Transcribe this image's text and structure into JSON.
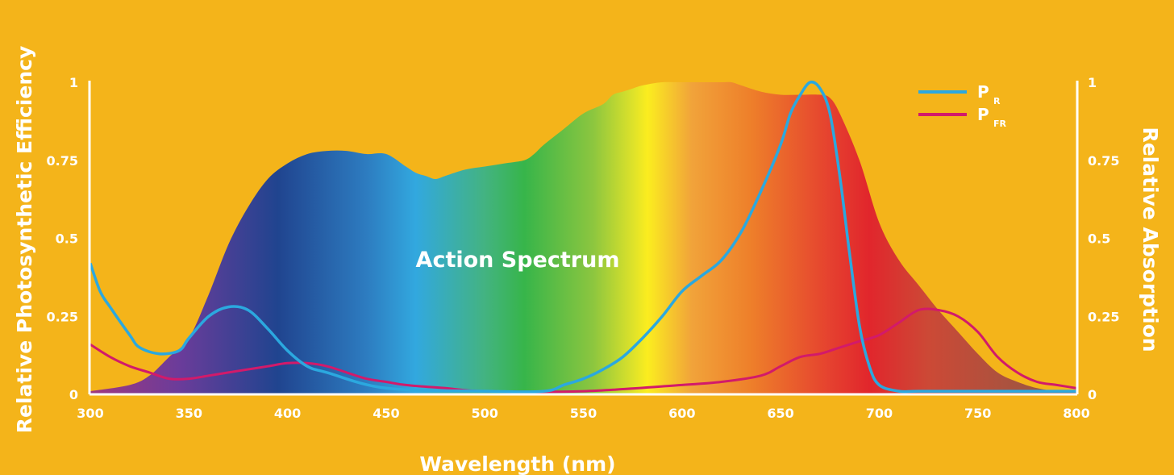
{
  "chart_data": {
    "type": "area",
    "xlabel": "Wavelength (nm)",
    "ylabel_left": "Relative Photosynthetic Efficiency",
    "ylabel_right": "Relative Absorption",
    "xlim": [
      300,
      800
    ],
    "ylim": [
      0,
      1
    ],
    "x_ticks": [
      "300",
      "350",
      "400",
      "450",
      "500",
      "550",
      "600",
      "650",
      "700",
      "750",
      "800"
    ],
    "y_ticks": [
      "0",
      "0.25",
      "0.5",
      "0.75",
      "1"
    ],
    "background_color": "#F4B41A",
    "area_label": "Action Spectrum",
    "area_fill": "visible-spectrum gradient (violet to red)",
    "legend_position": "top-right",
    "legend": [
      {
        "main": "P",
        "sub": "R",
        "color": "#2BA8DF"
      },
      {
        "main": "P",
        "sub": "FR",
        "color": "#D21A6A"
      }
    ],
    "series": [
      {
        "id": "action",
        "type": "area",
        "x": [
          300,
          320,
          330,
          340,
          350,
          360,
          370,
          380,
          390,
          400,
          410,
          420,
          430,
          440,
          450,
          460,
          465,
          470,
          475,
          480,
          490,
          500,
          510,
          520,
          525,
          530,
          540,
          550,
          560,
          565,
          570,
          575,
          580,
          590,
          600,
          610,
          620,
          625,
          630,
          640,
          650,
          660,
          670,
          675,
          680,
          690,
          700,
          710,
          720,
          730,
          740,
          750,
          760,
          770,
          780,
          790,
          800
        ],
        "y": [
          0.01,
          0.03,
          0.06,
          0.12,
          0.18,
          0.32,
          0.48,
          0.6,
          0.69,
          0.74,
          0.77,
          0.78,
          0.78,
          0.77,
          0.77,
          0.73,
          0.71,
          0.7,
          0.69,
          0.7,
          0.72,
          0.73,
          0.74,
          0.75,
          0.77,
          0.8,
          0.85,
          0.9,
          0.93,
          0.96,
          0.97,
          0.98,
          0.99,
          1.0,
          1.0,
          1.0,
          1.0,
          1.0,
          0.99,
          0.97,
          0.96,
          0.96,
          0.96,
          0.95,
          0.9,
          0.75,
          0.55,
          0.43,
          0.35,
          0.27,
          0.2,
          0.13,
          0.07,
          0.04,
          0.02,
          0.01,
          0.01
        ]
      },
      {
        "id": "PR",
        "name": "PR",
        "type": "line",
        "x": [
          300,
          305,
          310,
          320,
          325,
          335,
          345,
          350,
          360,
          370,
          380,
          390,
          400,
          410,
          420,
          450,
          500,
          530,
          540,
          550,
          560,
          570,
          580,
          590,
          600,
          610,
          620,
          630,
          640,
          650,
          655,
          660,
          665,
          670,
          675,
          680,
          685,
          690,
          695,
          700,
          710,
          720,
          750,
          800
        ],
        "y": [
          0.42,
          0.33,
          0.28,
          0.19,
          0.15,
          0.13,
          0.14,
          0.18,
          0.25,
          0.28,
          0.27,
          0.21,
          0.14,
          0.09,
          0.07,
          0.02,
          0.01,
          0.01,
          0.03,
          0.05,
          0.08,
          0.12,
          0.18,
          0.25,
          0.33,
          0.38,
          0.43,
          0.52,
          0.65,
          0.8,
          0.9,
          0.96,
          1.0,
          0.98,
          0.9,
          0.7,
          0.45,
          0.22,
          0.09,
          0.03,
          0.01,
          0.01,
          0.01,
          0.01
        ]
      },
      {
        "id": "PFR",
        "name": "PFR",
        "type": "line",
        "x": [
          300,
          310,
          320,
          330,
          340,
          350,
          360,
          370,
          380,
          390,
          400,
          410,
          420,
          430,
          440,
          450,
          460,
          480,
          500,
          550,
          600,
          620,
          640,
          650,
          660,
          670,
          680,
          690,
          700,
          710,
          720,
          730,
          740,
          750,
          760,
          770,
          780,
          790,
          800
        ],
        "y": [
          0.16,
          0.12,
          0.09,
          0.07,
          0.05,
          0.05,
          0.06,
          0.07,
          0.08,
          0.09,
          0.1,
          0.1,
          0.09,
          0.07,
          0.05,
          0.04,
          0.03,
          0.02,
          0.01,
          0.01,
          0.03,
          0.04,
          0.06,
          0.09,
          0.12,
          0.13,
          0.15,
          0.17,
          0.19,
          0.23,
          0.27,
          0.27,
          0.25,
          0.2,
          0.12,
          0.07,
          0.04,
          0.03,
          0.02
        ]
      }
    ]
  }
}
